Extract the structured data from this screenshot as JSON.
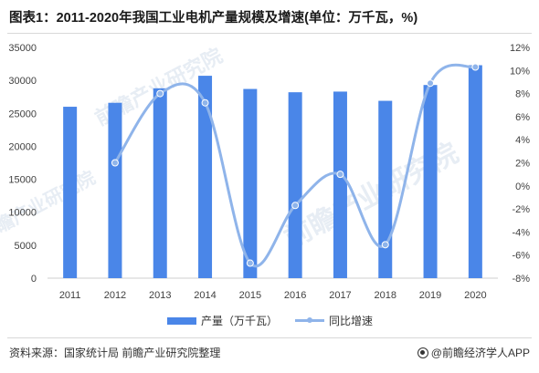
{
  "header": {
    "title": "图表1：2011-2020年我国工业电机产量规模及增速(单位：万千瓦，%)"
  },
  "chart_data": {
    "type": "bar",
    "categories": [
      "2011",
      "2012",
      "2013",
      "2014",
      "2015",
      "2016",
      "2017",
      "2018",
      "2019",
      "2020"
    ],
    "series": [
      {
        "name": "产量（万千瓦）",
        "kind": "bar",
        "axis": "left",
        "color": "#4a86e8",
        "values": [
          26000,
          26600,
          28800,
          30700,
          28700,
          28200,
          28300,
          26900,
          29300,
          32300
        ]
      },
      {
        "name": "同比增速",
        "kind": "line",
        "axis": "right",
        "color": "#8fb4ea",
        "values": [
          null,
          2.0,
          8.0,
          7.2,
          -6.7,
          -1.7,
          1.0,
          -5.1,
          8.9,
          10.3
        ]
      }
    ],
    "y_left": {
      "min": 0,
      "max": 35000,
      "ticks": [
        "0",
        "5000",
        "10000",
        "15000",
        "20000",
        "25000",
        "30000",
        "35000"
      ]
    },
    "y_right": {
      "min": -8,
      "max": 12,
      "ticks": [
        "-8%",
        "-6%",
        "-4%",
        "-2%",
        "0%",
        "2%",
        "4%",
        "6%",
        "8%",
        "10%",
        "12%"
      ]
    },
    "grid": false,
    "legend_position": "bottom-center"
  },
  "legend": {
    "bar_label": "产量（万千瓦）",
    "line_label": "同比增速"
  },
  "footer": {
    "source": "资料来源：国家统计局 前瞻产业研究院整理",
    "credit": "@前瞻经济学人APP"
  },
  "watermarks": [
    "前瞻产业研究院",
    "前瞻产业研究院",
    "前瞻产业研究院"
  ]
}
